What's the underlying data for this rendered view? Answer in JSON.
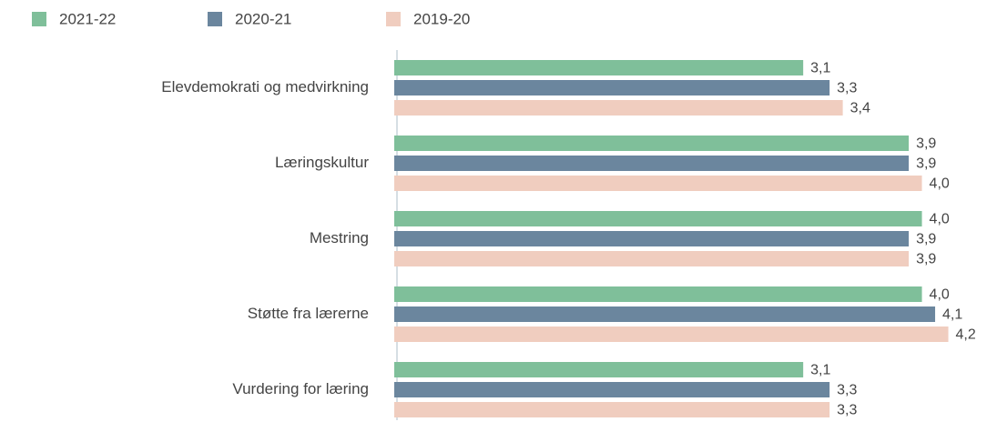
{
  "chart_data": {
    "type": "barh",
    "categories": [
      "Elevdemokrati og medvirkning",
      "Læringskultur",
      "Mestring",
      "Støtte fra lærerne",
      "Vurdering for læring"
    ],
    "series": [
      {
        "name": "2021-22",
        "color": "#7fbf9a",
        "values": [
          3.1,
          3.9,
          4.0,
          4.0,
          3.1
        ],
        "value_labels": [
          "3,1",
          "3,9",
          "4,0",
          "4,0",
          "3,1"
        ]
      },
      {
        "name": "2020-21",
        "color": "#6b869e",
        "values": [
          3.3,
          3.9,
          3.9,
          4.1,
          3.3
        ],
        "value_labels": [
          "3,3",
          "3,9",
          "3,9",
          "4,1",
          "3,3"
        ]
      },
      {
        "name": "2019-20",
        "color": "#f0cdbf",
        "values": [
          3.4,
          4.0,
          3.9,
          4.2,
          3.3
        ],
        "value_labels": [
          "3,4",
          "4,0",
          "3,9",
          "4,2",
          "3,3"
        ]
      }
    ],
    "xlim": [
      0,
      4.5
    ],
    "legend": "top-left"
  }
}
